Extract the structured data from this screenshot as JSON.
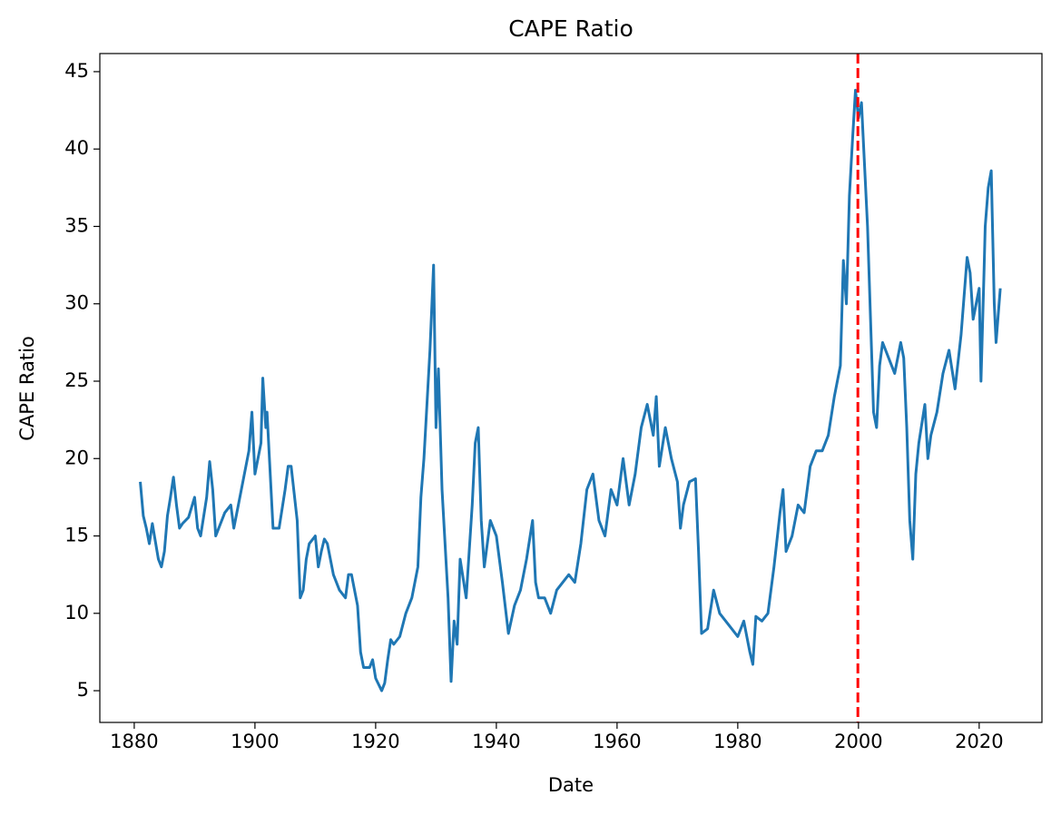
{
  "chart_data": {
    "type": "line",
    "title": "CAPE Ratio",
    "x_label": "Date",
    "y_label": "CAPE Ratio",
    "x": [
      1881,
      1881.5,
      1882,
      1882.5,
      1883,
      1884,
      1884.5,
      1885,
      1885.5,
      1886,
      1886.5,
      1887,
      1887.5,
      1888,
      1889,
      1890,
      1890.5,
      1891,
      1892,
      1892.5,
      1893,
      1893.5,
      1894,
      1895,
      1896,
      1896.5,
      1897,
      1898,
      1899,
      1899.5,
      1900,
      1901,
      1901.3,
      1901.8,
      1902,
      1903,
      1904,
      1905,
      1905.5,
      1906,
      1907,
      1907.5,
      1908,
      1908.5,
      1909,
      1910,
      1910.5,
      1911,
      1911.5,
      1912,
      1913,
      1914,
      1915,
      1915.5,
      1916,
      1917,
      1917.5,
      1918,
      1919,
      1919.5,
      1920,
      1921,
      1921.5,
      1922,
      1922.5,
      1923,
      1924,
      1925,
      1926,
      1927,
      1927.5,
      1928,
      1929,
      1929.6,
      1930,
      1930.4,
      1931,
      1932,
      1932.5,
      1933,
      1933.5,
      1934,
      1935,
      1936,
      1936.5,
      1937,
      1937.5,
      1938,
      1939,
      1940,
      1941,
      1942,
      1943,
      1944,
      1945,
      1946,
      1946.5,
      1947,
      1948,
      1949,
      1950,
      1951,
      1952,
      1953,
      1954,
      1955,
      1956,
      1957,
      1958,
      1959,
      1960,
      1961,
      1962,
      1963,
      1964,
      1965,
      1966,
      1966.5,
      1967,
      1968,
      1969,
      1970,
      1970.5,
      1971,
      1972,
      1973,
      1973.5,
      1974,
      1975,
      1976,
      1977,
      1978,
      1979,
      1980,
      1981,
      1982,
      1982.5,
      1983,
      1984,
      1985,
      1986,
      1987,
      1987.5,
      1988,
      1989,
      1990,
      1991,
      1992,
      1993,
      1994,
      1995,
      1996,
      1997,
      1997.5,
      1998,
      1998.5,
      1999,
      1999.5,
      2000,
      2000.5,
      2001,
      2001.5,
      2002,
      2002.5,
      2003,
      2003.5,
      2004,
      2005,
      2006,
      2007,
      2007.5,
      2008,
      2008.5,
      2009,
      2009.5,
      2010,
      2011,
      2011.5,
      2012,
      2013,
      2014,
      2015,
      2016,
      2017,
      2018,
      2018.5,
      2019,
      2020,
      2020.3,
      2020.8,
      2021,
      2021.5,
      2022,
      2022.5,
      2022.8,
      2023,
      2023.5
    ],
    "values": [
      18.5,
      16.3,
      15.5,
      14.5,
      15.8,
      13.5,
      13.0,
      14,
      16.3,
      17.5,
      18.8,
      17,
      15.5,
      15.8,
      16.2,
      17.5,
      15.5,
      15.0,
      17.5,
      19.8,
      18,
      15,
      15.5,
      16.5,
      17,
      15.5,
      16.5,
      18.5,
      20.5,
      23,
      19,
      21,
      25.2,
      22,
      23,
      15.5,
      15.5,
      18,
      19.5,
      19.5,
      16,
      11,
      11.5,
      13.5,
      14.5,
      15,
      13,
      14,
      14.8,
      14.5,
      12.5,
      11.5,
      11,
      12.5,
      12.5,
      10.5,
      7.5,
      6.5,
      6.5,
      7,
      5.8,
      5,
      5.5,
      7,
      8.3,
      8,
      8.5,
      10,
      11,
      13,
      17.5,
      20,
      27,
      32.5,
      22,
      25.8,
      18,
      11,
      5.6,
      9.5,
      8,
      13.5,
      11,
      17,
      21,
      22,
      16,
      13,
      16,
      15,
      12,
      8.7,
      10.5,
      11.5,
      13.5,
      16,
      12,
      11,
      11,
      10,
      11.5,
      12,
      12.5,
      12,
      14.5,
      18,
      19,
      16,
      15,
      18,
      17,
      20,
      17,
      19,
      22,
      23.5,
      21.5,
      24,
      19.5,
      22,
      20,
      18.5,
      15.5,
      17,
      18.5,
      18.7,
      14,
      8.7,
      9,
      11.5,
      10,
      9.5,
      9,
      8.5,
      9.5,
      7.5,
      6.7,
      9.8,
      9.5,
      10,
      13,
      16.5,
      18,
      14,
      15,
      17,
      16.5,
      19.5,
      20.5,
      20.5,
      21.5,
      24,
      26,
      32.8,
      30,
      37,
      40.5,
      43.8,
      42,
      43,
      39,
      35,
      29,
      23,
      22,
      26,
      27.5,
      26.5,
      25.5,
      27.5,
      26.5,
      22,
      16,
      13.5,
      19,
      21,
      23.5,
      20,
      21.5,
      23,
      25.5,
      27,
      24.5,
      28,
      33,
      32,
      29,
      31,
      25,
      32,
      35,
      37.5,
      38.6,
      30,
      27.5,
      28.5,
      31
    ],
    "color": "#1f77b4",
    "xlim": [
      1874.3,
      2030.4
    ],
    "xticks": [
      1880,
      1900,
      1920,
      1940,
      1960,
      1980,
      2000,
      2020
    ],
    "ylim": [
      2.95,
      46.17
    ],
    "yticks": [
      5,
      10,
      15,
      20,
      25,
      30,
      35,
      40,
      45
    ],
    "vlines": [
      {
        "x": 1999.9,
        "color": "#ff0000",
        "style": "dashed"
      }
    ]
  }
}
